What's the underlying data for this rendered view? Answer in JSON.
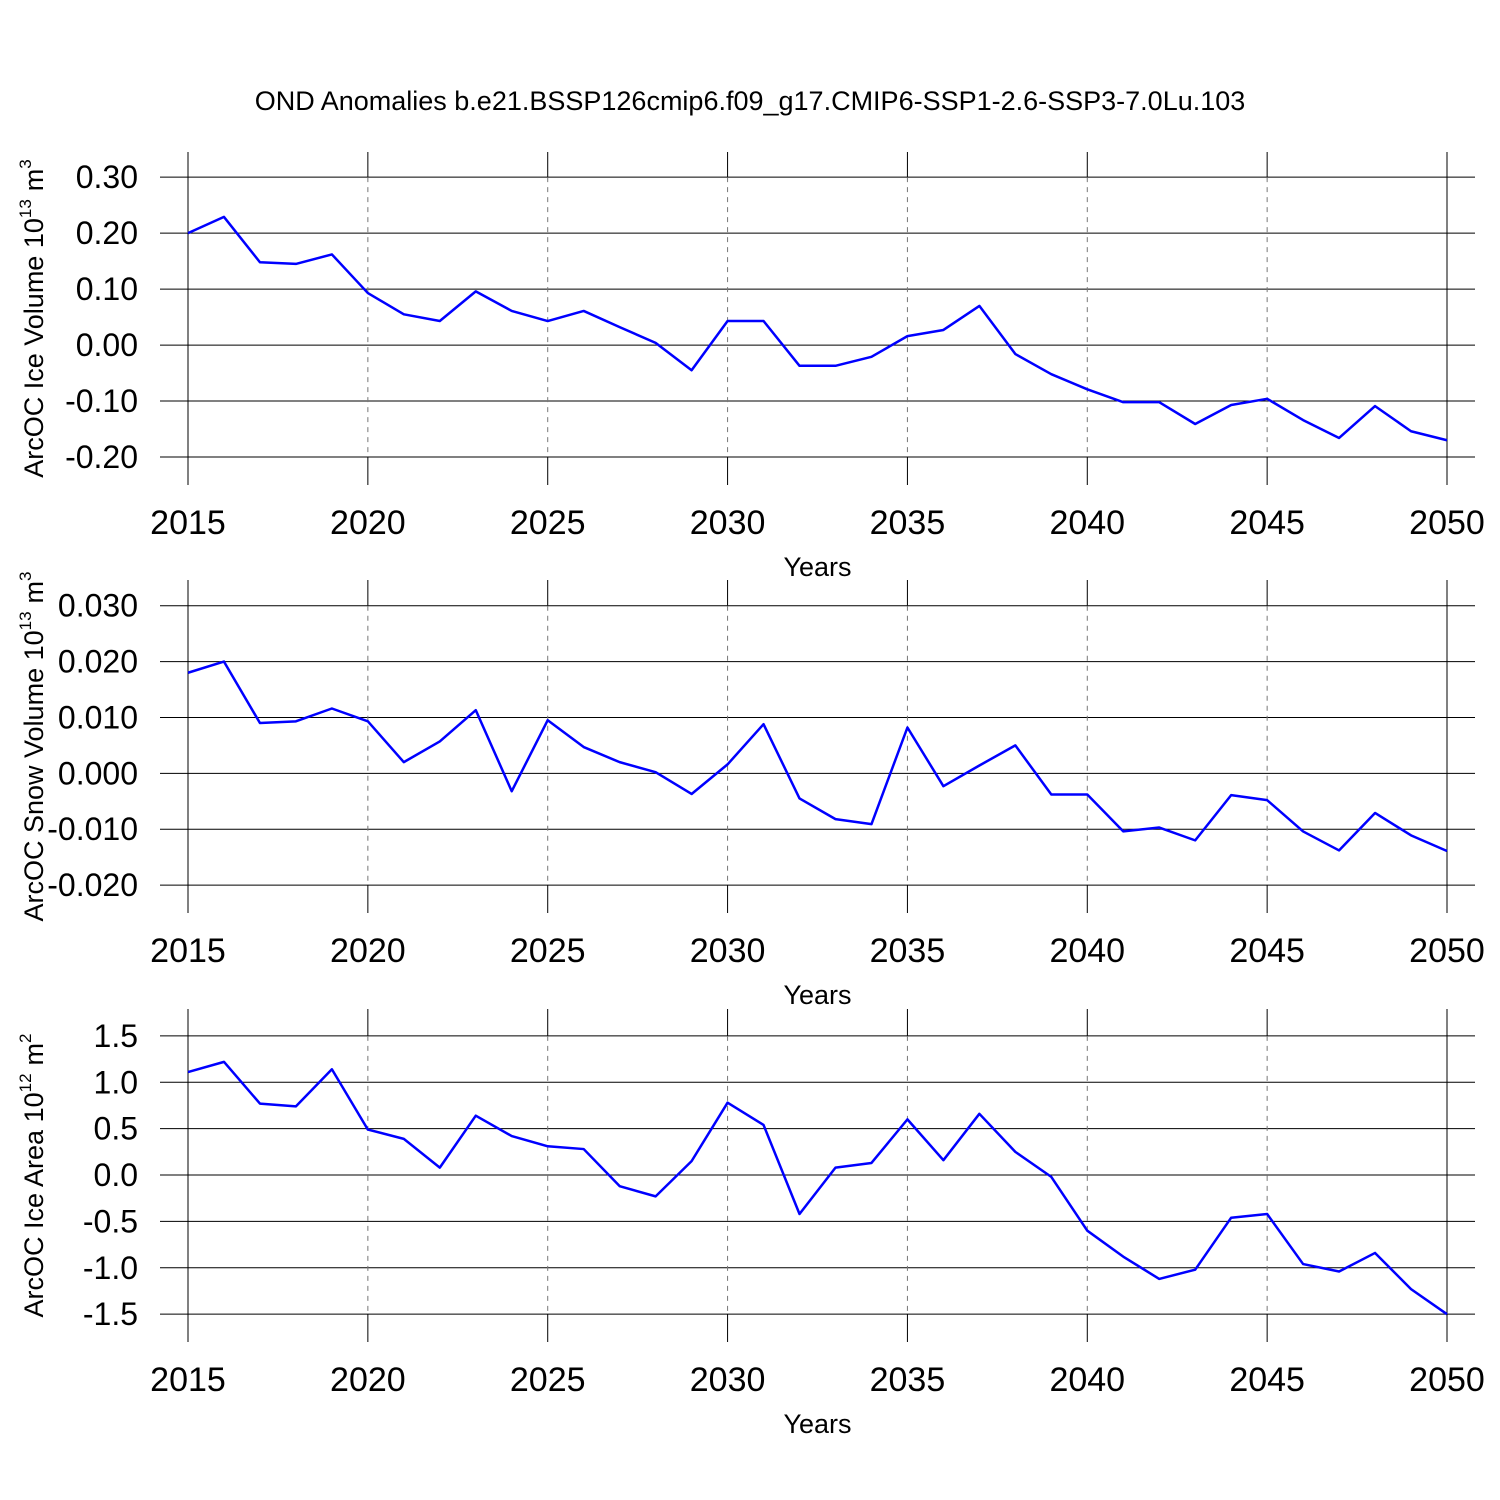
{
  "title": "OND Anomalies b.e21.BSSP126cmip6.f09_g17.CMIP6-SSP1-2.6-SSP3-7.0Lu.103",
  "chart_data": [
    {
      "type": "line",
      "ylabel": [
        "ArcOC Ice Volume 10",
        "13",
        "m",
        "3"
      ],
      "xlabel": "Years",
      "x": [
        2015,
        2016,
        2017,
        2018,
        2019,
        2020,
        2021,
        2022,
        2023,
        2024,
        2025,
        2026,
        2027,
        2028,
        2029,
        2030,
        2031,
        2032,
        2033,
        2034,
        2035,
        2036,
        2037,
        2038,
        2039,
        2040,
        2041,
        2042,
        2043,
        2044,
        2045,
        2046,
        2047,
        2048,
        2049,
        2050
      ],
      "values": [
        0.2,
        0.229,
        0.148,
        0.145,
        0.162,
        0.093,
        0.055,
        0.043,
        0.096,
        0.061,
        0.043,
        0.061,
        0.032,
        0.004,
        -0.045,
        0.043,
        0.043,
        -0.037,
        -0.037,
        -0.021,
        0.016,
        0.027,
        0.07,
        -0.016,
        -0.052,
        -0.079,
        -0.102,
        -0.102,
        -0.141,
        -0.107,
        -0.096,
        -0.134,
        -0.166,
        -0.109,
        -0.154,
        -0.17
      ],
      "color": "#0000ff",
      "grid": true,
      "xlim": [
        2015,
        2050
      ],
      "xticks": [
        2015,
        2020,
        2025,
        2030,
        2035,
        2040,
        2045,
        2050
      ],
      "ylim": [
        -0.25,
        0.345
      ],
      "yticks": [
        {
          "value": -0.2,
          "label": "-0.20"
        },
        {
          "value": -0.1,
          "label": "-0.10"
        },
        {
          "value": 0,
          "label": "0.00"
        },
        {
          "value": 0.1,
          "label": "0.10"
        },
        {
          "value": 0.2,
          "label": "0.20"
        },
        {
          "value": 0.3,
          "label": "0.30"
        }
      ]
    },
    {
      "type": "line",
      "ylabel": [
        "ArcOC Snow Volume 10",
        "13",
        "m",
        "3"
      ],
      "xlabel": "Years",
      "x": [
        2015,
        2016,
        2017,
        2018,
        2019,
        2020,
        2021,
        2022,
        2023,
        2024,
        2025,
        2026,
        2027,
        2028,
        2029,
        2030,
        2031,
        2032,
        2033,
        2034,
        2035,
        2036,
        2037,
        2038,
        2039,
        2040,
        2041,
        2042,
        2043,
        2044,
        2045,
        2046,
        2047,
        2048,
        2049,
        2050
      ],
      "values": [
        0.018,
        0.02,
        0.009,
        0.0093,
        0.0116,
        0.0093,
        0.002,
        0.0057,
        0.0113,
        -0.0032,
        0.0095,
        0.0047,
        0.002,
        0.0002,
        -0.0037,
        0.0016,
        0.0088,
        -0.0045,
        -0.0082,
        -0.0091,
        0.0082,
        -0.0023,
        0.0014,
        0.005,
        -0.0038,
        -0.0038,
        -0.0104,
        -0.0097,
        -0.012,
        -0.0039,
        -0.0048,
        -0.0104,
        -0.0138,
        -0.0071,
        -0.0111,
        -0.0139
      ],
      "color": "#0000ff",
      "grid": true,
      "xlim": [
        2015,
        2050
      ],
      "xticks": [
        2015,
        2020,
        2025,
        2030,
        2035,
        2040,
        2045,
        2050
      ],
      "ylim": [
        -0.025,
        0.0346
      ],
      "yticks": [
        {
          "value": -0.02,
          "label": "-0.020"
        },
        {
          "value": -0.01,
          "label": "-0.010"
        },
        {
          "value": 0,
          "label": "0.000"
        },
        {
          "value": 0.01,
          "label": "0.010"
        },
        {
          "value": 0.02,
          "label": "0.020"
        },
        {
          "value": 0.03,
          "label": "0.030"
        }
      ]
    },
    {
      "type": "line",
      "ylabel": [
        "ArcOC Ice Area 10",
        "12",
        "m",
        "2"
      ],
      "xlabel": "Years",
      "x": [
        2015,
        2016,
        2017,
        2018,
        2019,
        2020,
        2021,
        2022,
        2023,
        2024,
        2025,
        2026,
        2027,
        2028,
        2029,
        2030,
        2031,
        2032,
        2033,
        2034,
        2035,
        2036,
        2037,
        2038,
        2039,
        2040,
        2041,
        2042,
        2043,
        2044,
        2045,
        2046,
        2047,
        2048,
        2049,
        2050
      ],
      "values": [
        1.11,
        1.22,
        0.77,
        0.74,
        1.14,
        0.49,
        0.39,
        0.08,
        0.64,
        0.42,
        0.31,
        0.28,
        -0.12,
        -0.23,
        0.15,
        0.78,
        0.54,
        -0.42,
        0.08,
        0.13,
        0.6,
        0.16,
        0.66,
        0.25,
        -0.02,
        -0.6,
        -0.88,
        -1.12,
        -1.02,
        -0.46,
        -0.42,
        -0.96,
        -1.04,
        -0.84,
        -1.23,
        -1.5
      ],
      "color": "#0000ff",
      "grid": true,
      "xlim": [
        2015,
        2050
      ],
      "xticks": [
        2015,
        2020,
        2025,
        2030,
        2035,
        2040,
        2045,
        2050
      ],
      "ylim": [
        -1.8,
        1.79
      ],
      "yticks": [
        -1.5,
        {
          "value": -1,
          "label": "-1.0"
        },
        -0.5,
        {
          "value": 0,
          "label": "0.0"
        },
        0.5,
        {
          "value": 1,
          "label": "1.0"
        },
        1.5
      ]
    }
  ]
}
